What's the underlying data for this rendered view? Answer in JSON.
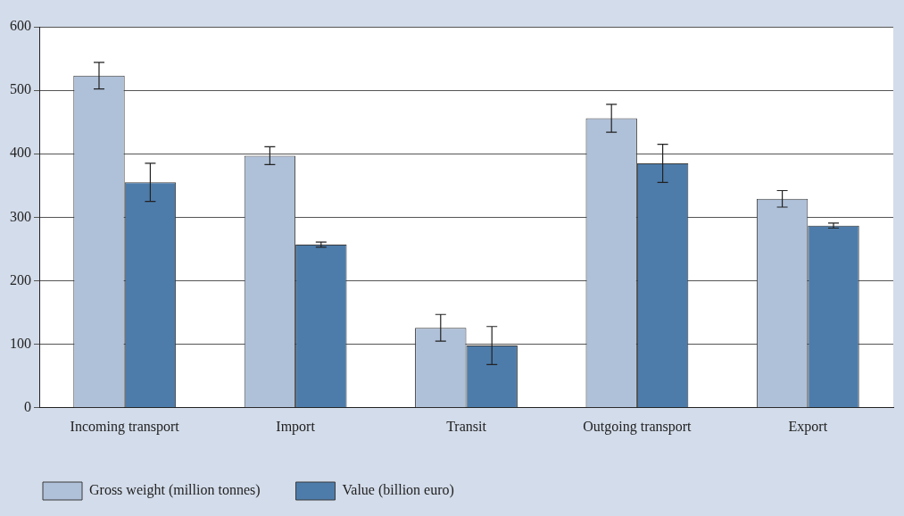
{
  "chart_data": {
    "type": "bar",
    "categories": [
      "Incoming transport",
      "Import",
      "Transit",
      "Outgoing transport",
      "Export"
    ],
    "series": [
      {
        "name": "Gross weight (million tonnes)",
        "color": "#afc1d9",
        "values": [
          523,
          397,
          126,
          456,
          329
        ],
        "errors": [
          21,
          14,
          21,
          22,
          13
        ]
      },
      {
        "name": "Value (billion euro)",
        "color": "#4d7cab",
        "values": [
          355,
          257,
          98,
          385,
          287
        ],
        "errors": [
          30,
          4,
          30,
          30,
          4
        ]
      }
    ],
    "ylim": [
      0,
      600
    ],
    "yticks": [
      0,
      100,
      200,
      300,
      400,
      500,
      600
    ],
    "grid": "y",
    "legend": "bottom left"
  }
}
